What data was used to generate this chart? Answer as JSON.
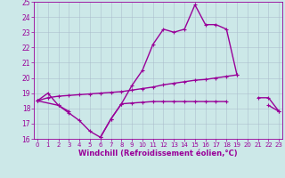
{
  "line1_x": [
    0,
    1,
    2,
    3,
    4,
    5,
    6,
    7,
    8,
    9,
    10,
    11,
    12,
    13,
    14,
    15,
    16,
    17,
    18,
    19
  ],
  "line1_y": [
    18.5,
    19.0,
    18.2,
    17.7,
    17.2,
    16.5,
    16.1,
    17.3,
    18.3,
    19.5,
    20.5,
    22.2,
    23.2,
    23.0,
    23.2,
    24.8,
    23.5,
    23.5,
    23.2,
    20.2
  ],
  "line2_x": [
    0,
    1,
    2,
    3,
    4,
    5,
    6,
    7,
    8,
    9,
    10,
    11,
    12,
    13,
    14,
    15,
    16,
    17,
    18,
    19,
    21,
    22,
    23
  ],
  "line2_y": [
    18.5,
    18.7,
    18.8,
    18.85,
    18.9,
    18.95,
    19.0,
    19.05,
    19.1,
    19.2,
    19.3,
    19.4,
    19.55,
    19.65,
    19.75,
    19.85,
    19.9,
    20.0,
    20.1,
    20.2,
    18.7,
    18.7,
    17.8
  ],
  "line2_break": 19,
  "line3_x": [
    0,
    2,
    3,
    6,
    7,
    8,
    9,
    10,
    11,
    12,
    13,
    14,
    15,
    16,
    17,
    18,
    22,
    23
  ],
  "line3_y": [
    18.5,
    18.2,
    17.8,
    16.1,
    17.3,
    18.3,
    18.35,
    18.4,
    18.45,
    18.45,
    18.45,
    18.45,
    18.45,
    18.45,
    18.45,
    18.45,
    18.2,
    17.8
  ],
  "ylim": [
    16,
    25
  ],
  "xlim_min": -0.3,
  "xlim_max": 23.3,
  "yticks": [
    16,
    17,
    18,
    19,
    20,
    21,
    22,
    23,
    24,
    25
  ],
  "xticks": [
    0,
    1,
    2,
    3,
    4,
    5,
    6,
    7,
    8,
    9,
    10,
    11,
    12,
    13,
    14,
    15,
    16,
    17,
    18,
    19,
    20,
    21,
    22,
    23
  ],
  "xlabel": "Windchill (Refroidissement éolien,°C)",
  "line_color": "#990099",
  "bg_color": "#cce8e8",
  "grid_color": "#aabbcc",
  "tick_fontsize": 5.0,
  "xlabel_fontsize": 6.0,
  "linewidth": 1.0,
  "marker_size": 3.5
}
